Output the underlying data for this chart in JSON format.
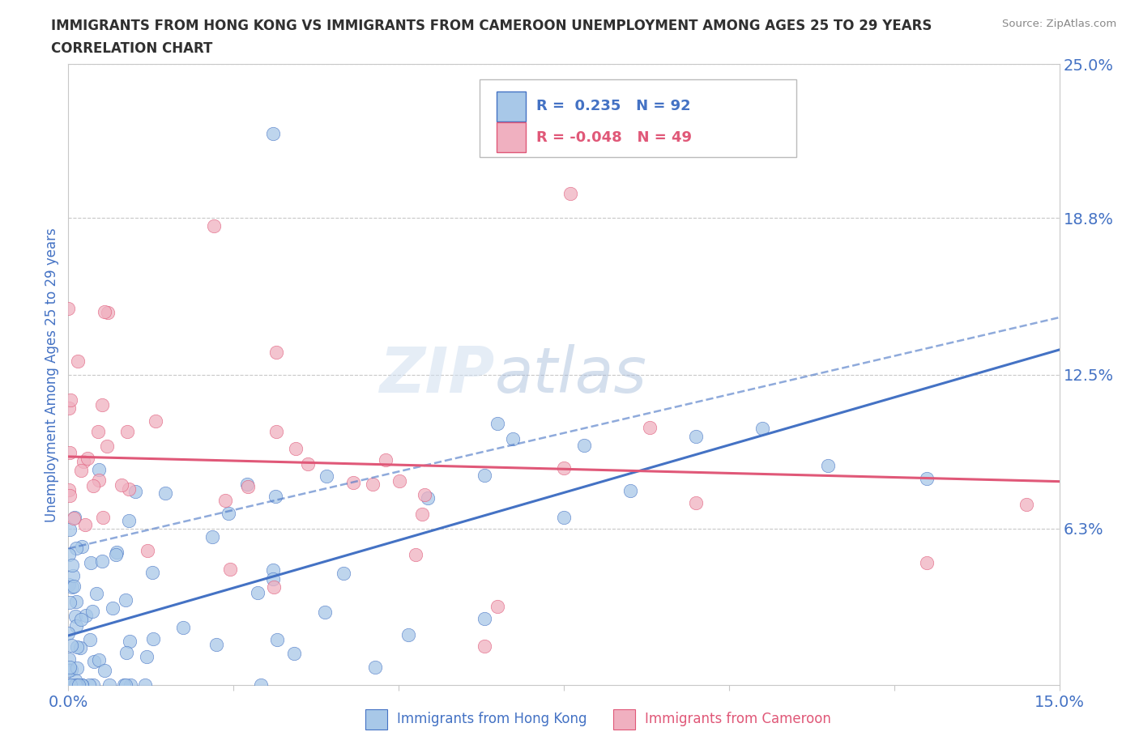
{
  "title_line1": "IMMIGRANTS FROM HONG KONG VS IMMIGRANTS FROM CAMEROON UNEMPLOYMENT AMONG AGES 25 TO 29 YEARS",
  "title_line2": "CORRELATION CHART",
  "source": "Source: ZipAtlas.com",
  "ylabel": "Unemployment Among Ages 25 to 29 years",
  "xlim": [
    0.0,
    0.15
  ],
  "ylim": [
    0.0,
    0.25
  ],
  "yticks": [
    0.0,
    0.063,
    0.125,
    0.188,
    0.25
  ],
  "ytick_labels": [
    "",
    "6.3%",
    "12.5%",
    "18.8%",
    "25.0%"
  ],
  "xticks": [
    0.0,
    0.025,
    0.05,
    0.075,
    0.1,
    0.125,
    0.15
  ],
  "hong_kong_color": "#a8c8e8",
  "cameroon_color": "#f0b0c0",
  "trend_hk_color": "#4472c4",
  "trend_cam_color": "#e05878",
  "watermark_part1": "ZIP",
  "watermark_part2": "atlas",
  "hk_R": 0.235,
  "hk_N": 92,
  "cam_R": -0.048,
  "cam_N": 49,
  "background_color": "#ffffff",
  "grid_color": "#c8c8c8",
  "title_color": "#303030",
  "axis_label_color": "#4472c4",
  "tick_label_color": "#4472c4",
  "trend_hk_start_y": 0.02,
  "trend_hk_end_y": 0.135,
  "trend_cam_start_y": 0.092,
  "trend_cam_end_y": 0.082,
  "trend_dashed_start_y": 0.055,
  "trend_dashed_end_y": 0.148
}
